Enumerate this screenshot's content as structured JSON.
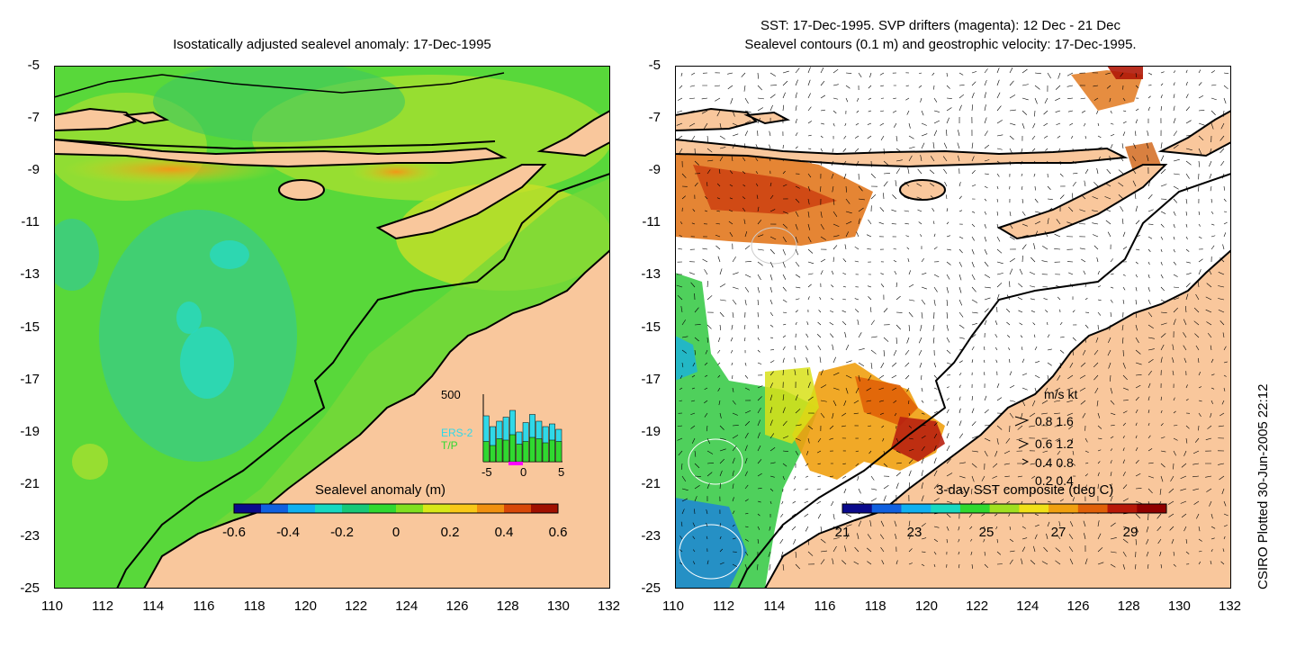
{
  "left_panel": {
    "title": "Isostatically adjusted sealevel anomaly: 17-Dec-1995",
    "colorbar": {
      "label": "Sealevel anomaly (m)",
      "ticks": [
        "-0.6",
        "-0.4",
        "-0.2",
        "0",
        "0.2",
        "0.4",
        "0.6"
      ],
      "range": [
        -0.6,
        0.6
      ],
      "colors": [
        "#0a0a8c",
        "#1060e0",
        "#10b0f0",
        "#18d8c0",
        "#18c878",
        "#30d830",
        "#80e020",
        "#d8e818",
        "#f8c818",
        "#f09010",
        "#d84808",
        "#a01000"
      ]
    },
    "histogram": {
      "max_label": "500",
      "x_ticks": [
        "-5",
        "0",
        "5"
      ],
      "legend": [
        "ERS-2",
        "T/P"
      ],
      "legend_colors": [
        "#30d8e8",
        "#30d830"
      ],
      "bars_ers2": [
        340,
        260,
        300,
        330,
        380,
        220,
        290,
        350,
        300,
        260,
        280,
        240
      ],
      "bars_tp": [
        150,
        120,
        170,
        160,
        200,
        130,
        150,
        180,
        170,
        140,
        160,
        150
      ]
    }
  },
  "right_panel": {
    "title_line1": "SST: 17-Dec-1995. SVP drifters (magenta): 12 Dec - 21 Dec",
    "title_line2": "Sealevel contours (0.1 m) and geostrophic velocity: 17-Dec-1995.",
    "colorbar": {
      "label": "3-day SST composite (deg C)",
      "ticks": [
        "21",
        "23",
        "25",
        "27",
        "29"
      ],
      "range": [
        21,
        30
      ],
      "colors": [
        "#0a0a8c",
        "#1060e0",
        "#10b0f0",
        "#18d8c0",
        "#30d830",
        "#a0e020",
        "#f0e018",
        "#f0a010",
        "#e06008",
        "#b81808",
        "#900000"
      ]
    },
    "velocity_legend": {
      "header": "m/s  kt",
      "rows": [
        "0.8  1.6",
        "0.6  1.2",
        "0.4  0.8",
        "0.2  0.4"
      ]
    }
  },
  "axes": {
    "x_ticks": [
      "110",
      "112",
      "114",
      "116",
      "118",
      "120",
      "122",
      "124",
      "126",
      "128",
      "130",
      "132"
    ],
    "y_ticks": [
      "-5",
      "-7",
      "-9",
      "-11",
      "-13",
      "-15",
      "-17",
      "-19",
      "-21",
      "-23",
      "-25"
    ],
    "lon_range": [
      110,
      132
    ],
    "lat_range": [
      -25,
      -5
    ]
  },
  "credit": "CSIRO Plotted 30-Jun-2005 22:12",
  "colors": {
    "land": "#f9c79c",
    "ocean_green": "#58d83a",
    "ocean_light": "#9ae03a",
    "white_sea": "#ffffff"
  }
}
